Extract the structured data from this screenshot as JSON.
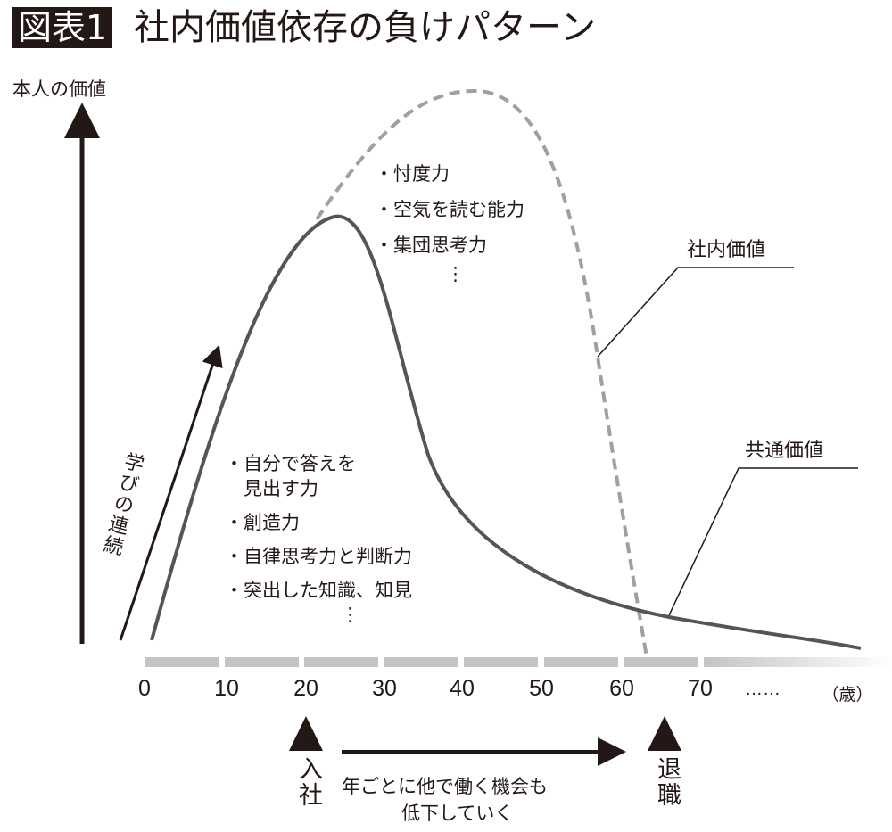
{
  "header": {
    "badge": "図表1",
    "title": "社内価値依存の負けパターン"
  },
  "axis": {
    "y_label": "本人の価値",
    "x_ticks": [
      "0",
      "10",
      "20",
      "30",
      "40",
      "50",
      "60",
      "70"
    ],
    "ellipsis": "……",
    "unit": "（歳）"
  },
  "arrow_label": "学びの連続",
  "series": {
    "internal": "社内価値",
    "common": "共通価値"
  },
  "internal_skills": [
    "・忖度力",
    "・空気を読む能力",
    "・集団思考力",
    "⋮"
  ],
  "common_skills": [
    "・自分で答えを",
    "　見出す力",
    "・創造力",
    "・自律思考力と判断力",
    "・突出した知識、知見",
    "⋮"
  ],
  "events": {
    "join": "入社",
    "retire": "退職",
    "between_line1": "年ごとに他で働く機会も",
    "between_line2": "低下していく"
  },
  "colors": {
    "solid": "#555555",
    "dashed": "#a0a0a0",
    "axis_bar": "#c4c4c4",
    "ink": "#231815"
  }
}
